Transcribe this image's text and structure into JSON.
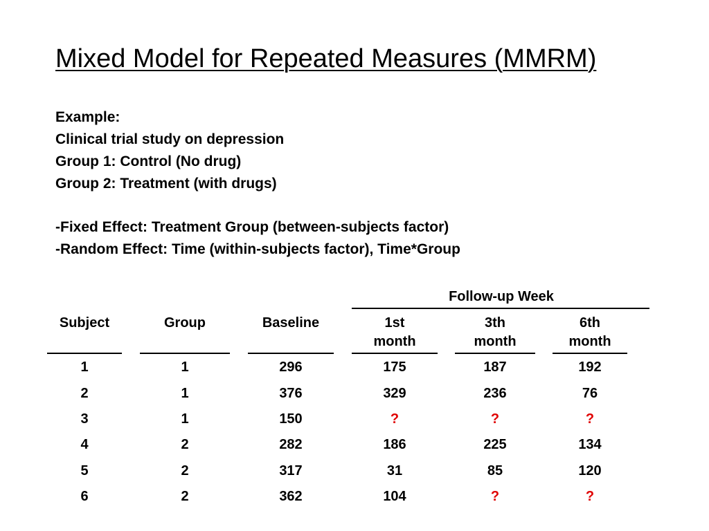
{
  "slide": {
    "title": "Mixed Model for Repeated Measures (MMRM)",
    "lines": [
      "Example:",
      "Clinical trial study on depression",
      "Group 1: Control (No drug)",
      "Group 2: Treatment (with drugs)",
      "-Fixed Effect: Treatment Group (between-subjects factor)",
      "-Random Effect: Time (within-subjects factor), Time*Group"
    ]
  },
  "table": {
    "group_header": "Follow-up Week",
    "columns": [
      {
        "line1": "Subject",
        "line2": ""
      },
      {
        "line1": "Group",
        "line2": ""
      },
      {
        "line1": "Baseline",
        "line2": ""
      },
      {
        "line1": "1st",
        "line2": "month"
      },
      {
        "line1": "3th",
        "line2": "month"
      },
      {
        "line1": "6th",
        "line2": "month"
      }
    ],
    "rows": [
      [
        "1",
        "1",
        "296",
        "175",
        "187",
        "192"
      ],
      [
        "2",
        "1",
        "376",
        "329",
        "236",
        "76"
      ],
      [
        "3",
        "1",
        "150",
        "?",
        "?",
        "?"
      ],
      [
        "4",
        "2",
        "282",
        "186",
        "225",
        "134"
      ],
      [
        "5",
        "2",
        "317",
        "31",
        "85",
        "120"
      ],
      [
        "6",
        "2",
        "362",
        "104",
        "?",
        "?"
      ]
    ],
    "missing_value_color": "#e00000"
  }
}
